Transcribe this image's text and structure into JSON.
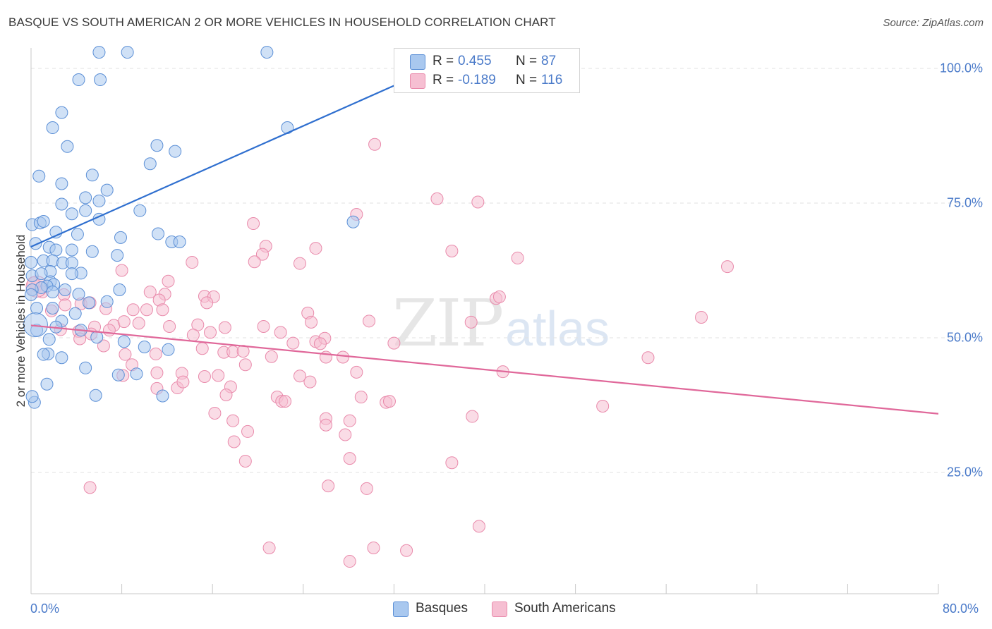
{
  "header": {
    "title": "BASQUE VS SOUTH AMERICAN 2 OR MORE VEHICLES IN HOUSEHOLD CORRELATION CHART",
    "source": "Source: ZipAtlas.com"
  },
  "watermark": {
    "zip": "ZIP",
    "atlas": "atlas"
  },
  "legend": {
    "basques": {
      "r_label": "R =",
      "r_value": "0.455",
      "n_label": "N =",
      "n_value": "87"
    },
    "south_americans": {
      "r_label": "R =",
      "r_value": "-0.189",
      "n_label": "N =",
      "n_value": "116"
    }
  },
  "colors": {
    "basques_fill": "#a9c8ef",
    "basques_stroke": "#5b8fd6",
    "basques_line": "#2f6fcf",
    "sa_fill": "#f6bfd2",
    "sa_stroke": "#e98aab",
    "sa_line": "#e0689a",
    "tick_text": "#4a7ac9",
    "grid": "#e2e2e2"
  },
  "chart_data": {
    "type": "scatter",
    "title": "BASQUE VS SOUTH AMERICAN 2 OR MORE VEHICLES IN HOUSEHOLD CORRELATION CHART",
    "xlabel": "",
    "ylabel": "2 or more Vehicles in Household",
    "xlim": [
      0,
      80
    ],
    "ylim": [
      0,
      105
    ],
    "x_tick_labels": [
      "0.0%",
      "80.0%"
    ],
    "y_ticks": [
      25,
      50,
      75,
      100
    ],
    "y_tick_labels": [
      "25.0%",
      "50.0%",
      "75.0%",
      "100.0%"
    ],
    "grid": true,
    "legend_position": "top-center",
    "series": [
      {
        "name": "Basques",
        "r": 0.455,
        "n": 87,
        "trend": {
          "x": [
            0,
            38
          ],
          "y": [
            66.9,
            102.4
          ]
        },
        "points": [
          [
            6.0,
            103
          ],
          [
            8.5,
            103
          ],
          [
            20.8,
            103
          ],
          [
            34.1,
            102.5
          ],
          [
            34.4,
            101.2
          ],
          [
            40.7,
            101.0
          ],
          [
            4.2,
            97.9
          ],
          [
            6.1,
            97.9
          ],
          [
            2.7,
            91.8
          ],
          [
            1.9,
            89.0
          ],
          [
            3.2,
            85.5
          ],
          [
            11.1,
            85.7
          ],
          [
            12.7,
            84.6
          ],
          [
            10.5,
            82.3
          ],
          [
            2.7,
            78.6
          ],
          [
            0.7,
            80.0
          ],
          [
            2.7,
            74.8
          ],
          [
            5.4,
            80.2
          ],
          [
            6.7,
            77.4
          ],
          [
            4.8,
            76.0
          ],
          [
            6.0,
            75.4
          ],
          [
            4.8,
            73.6
          ],
          [
            9.6,
            73.6
          ],
          [
            3.6,
            73.0
          ],
          [
            6.0,
            72.0
          ],
          [
            0.1,
            71.0
          ],
          [
            0.8,
            71.3
          ],
          [
            1.1,
            71.6
          ],
          [
            2.2,
            69.6
          ],
          [
            4.1,
            69.2
          ],
          [
            7.9,
            68.6
          ],
          [
            12.4,
            67.8
          ],
          [
            13.1,
            67.8
          ],
          [
            1.6,
            66.8
          ],
          [
            2.2,
            66.3
          ],
          [
            3.6,
            66.3
          ],
          [
            5.4,
            66.0
          ],
          [
            7.6,
            65.3
          ],
          [
            1.1,
            64.3
          ],
          [
            1.9,
            64.3
          ],
          [
            2.8,
            63.9
          ],
          [
            3.6,
            63.9
          ],
          [
            1.7,
            62.3
          ],
          [
            4.4,
            62.0
          ],
          [
            0.1,
            61.5
          ],
          [
            0.9,
            61.9
          ],
          [
            3.6,
            61.9
          ],
          [
            1.7,
            60.4
          ],
          [
            2.0,
            59.9
          ],
          [
            1.4,
            59.6
          ],
          [
            0.9,
            59.3
          ],
          [
            0.1,
            58.9
          ],
          [
            3.0,
            58.9
          ],
          [
            1.9,
            58.5
          ],
          [
            4.2,
            58.1
          ],
          [
            7.8,
            58.9
          ],
          [
            0.0,
            58.0
          ],
          [
            5.1,
            56.5
          ],
          [
            6.7,
            56.7
          ],
          [
            3.9,
            54.5
          ],
          [
            2.7,
            53.1
          ],
          [
            0.5,
            55.5
          ],
          [
            1.9,
            55.5
          ],
          [
            2.2,
            52.0
          ],
          [
            4.4,
            51.4
          ],
          [
            0.5,
            51.4
          ],
          [
            1.6,
            49.7
          ],
          [
            5.8,
            50.1
          ],
          [
            8.2,
            49.3
          ],
          [
            10.0,
            48.3
          ],
          [
            12.1,
            47.8
          ],
          [
            2.7,
            46.3
          ],
          [
            1.5,
            47.0
          ],
          [
            4.8,
            44.4
          ],
          [
            1.4,
            41.4
          ],
          [
            0.3,
            38.0
          ],
          [
            0.1,
            39.1
          ],
          [
            9.3,
            43.3
          ],
          [
            11.6,
            39.2
          ],
          [
            5.7,
            39.3
          ],
          [
            1.1,
            46.9
          ],
          [
            22.6,
            89.0
          ],
          [
            28.4,
            71.5
          ],
          [
            11.2,
            69.3
          ],
          [
            7.7,
            43.1
          ],
          [
            0.0,
            64.0
          ],
          [
            0.4,
            67.5
          ]
        ]
      },
      {
        "name": "South Americans",
        "r": -0.189,
        "n": 116,
        "trend": {
          "x": [
            0,
            80
          ],
          "y": [
            52.3,
            35.9
          ]
        },
        "points": [
          [
            30.3,
            85.9
          ],
          [
            35.8,
            75.8
          ],
          [
            39.4,
            75.2
          ],
          [
            28.7,
            72.9
          ],
          [
            19.6,
            71.2
          ],
          [
            20.7,
            67.0
          ],
          [
            25.1,
            66.6
          ],
          [
            20.4,
            65.5
          ],
          [
            37.1,
            66.1
          ],
          [
            42.9,
            64.8
          ],
          [
            61.4,
            63.2
          ],
          [
            14.2,
            64.0
          ],
          [
            19.7,
            64.1
          ],
          [
            23.7,
            63.8
          ],
          [
            8.0,
            62.5
          ],
          [
            12.1,
            60.5
          ],
          [
            10.5,
            58.5
          ],
          [
            11.8,
            58.1
          ],
          [
            15.3,
            57.7
          ],
          [
            16.1,
            57.6
          ],
          [
            11.3,
            57.0
          ],
          [
            2.9,
            58.0
          ],
          [
            3.0,
            56.1
          ],
          [
            4.4,
            56.3
          ],
          [
            5.2,
            56.5
          ],
          [
            6.6,
            55.4
          ],
          [
            9.0,
            55.2
          ],
          [
            10.2,
            55.2
          ],
          [
            11.6,
            55.2
          ],
          [
            15.5,
            56.5
          ],
          [
            41.0,
            57.3
          ],
          [
            41.3,
            57.6
          ],
          [
            24.4,
            54.6
          ],
          [
            24.7,
            52.9
          ],
          [
            17.1,
            51.9
          ],
          [
            20.5,
            52.1
          ],
          [
            29.8,
            53.1
          ],
          [
            38.8,
            52.9
          ],
          [
            59.1,
            53.8
          ],
          [
            5.6,
            52.0
          ],
          [
            7.3,
            52.3
          ],
          [
            8.2,
            53.0
          ],
          [
            9.5,
            52.7
          ],
          [
            14.7,
            52.4
          ],
          [
            4.2,
            51.2
          ],
          [
            5.3,
            50.7
          ],
          [
            6.9,
            51.4
          ],
          [
            15.8,
            51.0
          ],
          [
            23.1,
            49.0
          ],
          [
            25.1,
            49.3
          ],
          [
            25.9,
            49.9
          ],
          [
            17.0,
            47.3
          ],
          [
            17.8,
            47.4
          ],
          [
            18.7,
            47.5
          ],
          [
            21.2,
            46.5
          ],
          [
            26.0,
            46.4
          ],
          [
            27.5,
            46.4
          ],
          [
            54.4,
            46.3
          ],
          [
            8.3,
            46.9
          ],
          [
            8.9,
            45.0
          ],
          [
            18.9,
            45.0
          ],
          [
            11.1,
            43.5
          ],
          [
            13.3,
            43.4
          ],
          [
            15.3,
            42.8
          ],
          [
            16.5,
            43.0
          ],
          [
            28.7,
            43.6
          ],
          [
            41.6,
            43.7
          ],
          [
            23.7,
            42.9
          ],
          [
            24.6,
            41.8
          ],
          [
            11.1,
            40.6
          ],
          [
            12.9,
            40.7
          ],
          [
            13.4,
            41.8
          ],
          [
            17.6,
            40.9
          ],
          [
            17.2,
            39.4
          ],
          [
            21.7,
            39.0
          ],
          [
            22.1,
            38.2
          ],
          [
            22.4,
            38.2
          ],
          [
            29.1,
            39.0
          ],
          [
            31.3,
            38.0
          ],
          [
            31.6,
            38.2
          ],
          [
            50.4,
            37.3
          ],
          [
            16.2,
            36.0
          ],
          [
            17.8,
            34.6
          ],
          [
            26.0,
            35.0
          ],
          [
            28.1,
            34.6
          ],
          [
            38.9,
            35.4
          ],
          [
            26.0,
            33.8
          ],
          [
            19.1,
            32.6
          ],
          [
            27.7,
            32.0
          ],
          [
            17.9,
            30.7
          ],
          [
            18.9,
            27.1
          ],
          [
            28.1,
            27.6
          ],
          [
            37.1,
            26.8
          ],
          [
            26.2,
            22.5
          ],
          [
            29.6,
            22.0
          ],
          [
            5.2,
            22.2
          ],
          [
            39.5,
            15.0
          ],
          [
            21.0,
            11.0
          ],
          [
            30.2,
            11.0
          ],
          [
            33.1,
            10.5
          ],
          [
            28.1,
            8.5
          ],
          [
            8.1,
            43.0
          ],
          [
            4.3,
            49.8
          ],
          [
            6.4,
            48.5
          ],
          [
            15.1,
            48.0
          ],
          [
            0.5,
            59.6
          ],
          [
            1.0,
            58.5
          ],
          [
            1.8,
            55.0
          ],
          [
            12.2,
            52.1
          ],
          [
            22.0,
            51.0
          ],
          [
            14.3,
            50.5
          ],
          [
            32.0,
            49.0
          ],
          [
            2.6,
            51.5
          ],
          [
            0.2,
            60.2
          ],
          [
            25.5,
            48.9
          ],
          [
            11.0,
            47.0
          ]
        ]
      }
    ]
  },
  "bottom_legend": {
    "basques_label": "Basques",
    "sa_label": "South Americans"
  }
}
